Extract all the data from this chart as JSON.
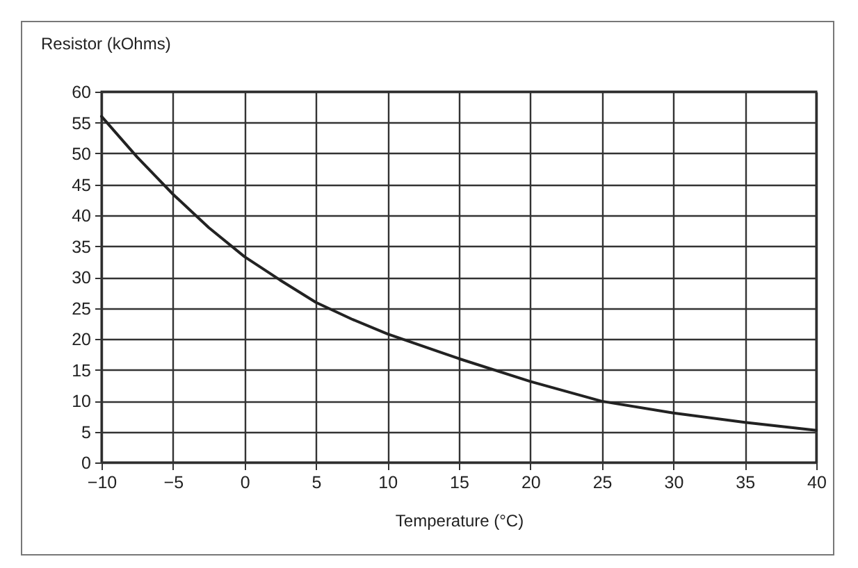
{
  "chart_data": {
    "type": "line",
    "xlabel": "Temperature (°C)",
    "ylabel": "Resistor (kOhms)",
    "x": [
      -10,
      -7.5,
      -5,
      -2.5,
      0,
      2.5,
      5,
      7.5,
      10,
      15,
      20,
      25,
      30,
      35,
      40
    ],
    "series": [
      {
        "color": "#222222",
        "values": [
          56,
          49.4,
          43.4,
          38,
          33.3,
          29.5,
          25.9,
          23.2,
          20.8,
          16.8,
          13.1,
          9.9,
          8.0,
          6.5,
          5.2
        ]
      }
    ],
    "xlim": [
      -10,
      40
    ],
    "xticks": [
      -10,
      -5,
      0,
      5,
      10,
      15,
      20,
      25,
      30,
      35,
      40
    ],
    "ylim": [
      0,
      60
    ],
    "yticks": [
      0,
      5,
      10,
      15,
      20,
      25,
      30,
      35,
      40,
      45,
      50,
      55,
      60
    ],
    "grid": true,
    "marker": "none",
    "line_style": "solid"
  }
}
